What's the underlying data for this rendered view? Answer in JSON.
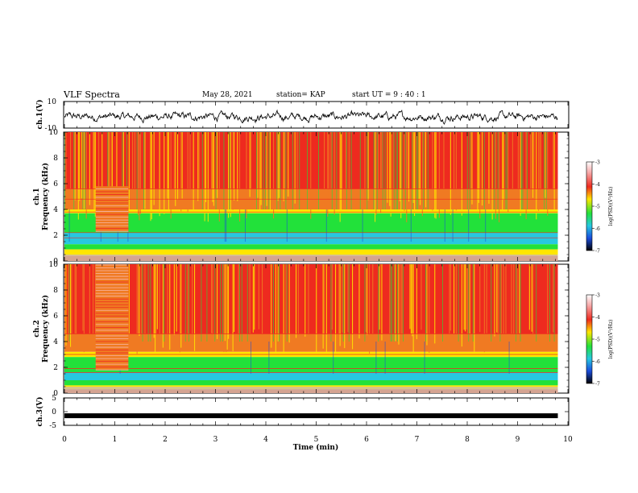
{
  "header": {
    "title": "VLF Spectra",
    "date": "May 28, 2021",
    "station": "station= KAP",
    "start": "start  UT =  9 : 40 : 1"
  },
  "chart_data": [
    {
      "type": "line",
      "panel": "ch1-waveform",
      "ylabel": "ch.1(V)",
      "ylim": [
        -10,
        10
      ],
      "yticks": [
        "10",
        "-10"
      ],
      "xlim": [
        0,
        10
      ],
      "x_end": 9.8,
      "note_values": "noisy waveform oscillating roughly between -6 and 3 V"
    },
    {
      "type": "heatmap",
      "panel": "ch1-spectrogram",
      "ylabel_top": "ch.1",
      "ylabel": "Frequency  (kHz)",
      "ylim": [
        0,
        10
      ],
      "yticks": [
        "0",
        "2",
        "4",
        "6",
        "8",
        "10"
      ],
      "xlim": [
        0,
        10
      ],
      "x_end": 9.8,
      "colorbar": {
        "label": "log(PSD)(V²/Hz)",
        "range": [
          -7,
          -3
        ],
        "ticks": [
          "-3",
          "-4",
          "-5",
          "-6",
          "-7"
        ]
      }
    },
    {
      "type": "heatmap",
      "panel": "ch2-spectrogram",
      "ylabel_top": "ch.2",
      "ylabel": "Frequency  (kHz)",
      "ylim": [
        0,
        10
      ],
      "yticks": [
        "0",
        "2",
        "4",
        "6",
        "8",
        "10"
      ],
      "xlim": [
        0,
        10
      ],
      "x_end": 9.8,
      "colorbar": {
        "label": "log(PSD)(V²/Hz)",
        "range": [
          -7,
          -3
        ],
        "ticks": [
          "-3",
          "-4",
          "-5",
          "-6",
          "-7"
        ]
      }
    },
    {
      "type": "line",
      "panel": "ch3-waveform",
      "ylabel": "ch.3(V)",
      "ylim": [
        -5,
        5
      ],
      "yticks": [
        "5",
        "0",
        "-5"
      ],
      "xlim": [
        0,
        10
      ],
      "x_end": 9.8,
      "value": -1.5,
      "xlabel": "Time  (min)",
      "xticks": [
        "0",
        "1",
        "2",
        "3",
        "4",
        "5",
        "6",
        "7",
        "8",
        "9",
        "10"
      ]
    }
  ],
  "colors": {
    "red": "#ee2a1f",
    "orange": "#f07a22",
    "yellow": "#ffe600",
    "green": "#22e13a",
    "cyan": "#27c8e0",
    "blue": "#1a4cdc",
    "line": "#000000"
  }
}
